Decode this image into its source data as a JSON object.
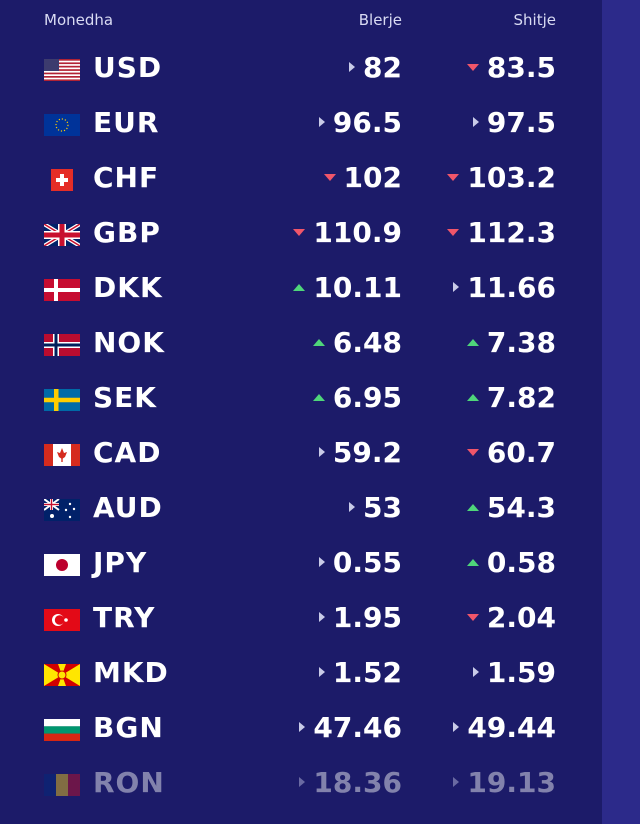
{
  "header": {
    "currency_label": "Monedha",
    "buy_label": "Blerje",
    "sell_label": "Shitje"
  },
  "colors": {
    "background": "#1c1b69",
    "up": "#4fd67a",
    "down": "#f0566a",
    "neutral": "#c9cbe8"
  },
  "rows": [
    {
      "code": "USD",
      "buy": "82",
      "buy_trend": "right",
      "sell": "83.5",
      "sell_trend": "down",
      "flag": "us-flag-icon"
    },
    {
      "code": "EUR",
      "buy": "96.5",
      "buy_trend": "right",
      "sell": "97.5",
      "sell_trend": "right",
      "flag": "eu-flag-icon"
    },
    {
      "code": "CHF",
      "buy": "102",
      "buy_trend": "down",
      "sell": "103.2",
      "sell_trend": "down",
      "flag": "ch-flag-icon"
    },
    {
      "code": "GBP",
      "buy": "110.9",
      "buy_trend": "down",
      "sell": "112.3",
      "sell_trend": "down",
      "flag": "gb-flag-icon"
    },
    {
      "code": "DKK",
      "buy": "10.11",
      "buy_trend": "up",
      "sell": "11.66",
      "sell_trend": "right",
      "flag": "dk-flag-icon"
    },
    {
      "code": "NOK",
      "buy": "6.48",
      "buy_trend": "up",
      "sell": "7.38",
      "sell_trend": "up",
      "flag": "no-flag-icon"
    },
    {
      "code": "SEK",
      "buy": "6.95",
      "buy_trend": "up",
      "sell": "7.82",
      "sell_trend": "up",
      "flag": "se-flag-icon"
    },
    {
      "code": "CAD",
      "buy": "59.2",
      "buy_trend": "right",
      "sell": "60.7",
      "sell_trend": "down",
      "flag": "ca-flag-icon"
    },
    {
      "code": "AUD",
      "buy": "53",
      "buy_trend": "right",
      "sell": "54.3",
      "sell_trend": "up",
      "flag": "au-flag-icon"
    },
    {
      "code": "JPY",
      "buy": "0.55",
      "buy_trend": "right",
      "sell": "0.58",
      "sell_trend": "up",
      "flag": "jp-flag-icon"
    },
    {
      "code": "TRY",
      "buy": "1.95",
      "buy_trend": "right",
      "sell": "2.04",
      "sell_trend": "down",
      "flag": "tr-flag-icon"
    },
    {
      "code": "MKD",
      "buy": "1.52",
      "buy_trend": "right",
      "sell": "1.59",
      "sell_trend": "right",
      "flag": "mk-flag-icon"
    },
    {
      "code": "BGN",
      "buy": "47.46",
      "buy_trend": "right",
      "sell": "49.44",
      "sell_trend": "right",
      "flag": "bg-flag-icon"
    },
    {
      "code": "RON",
      "buy": "18.36",
      "buy_trend": "right",
      "sell": "19.13",
      "sell_trend": "right",
      "flag": "ro-flag-icon"
    }
  ]
}
